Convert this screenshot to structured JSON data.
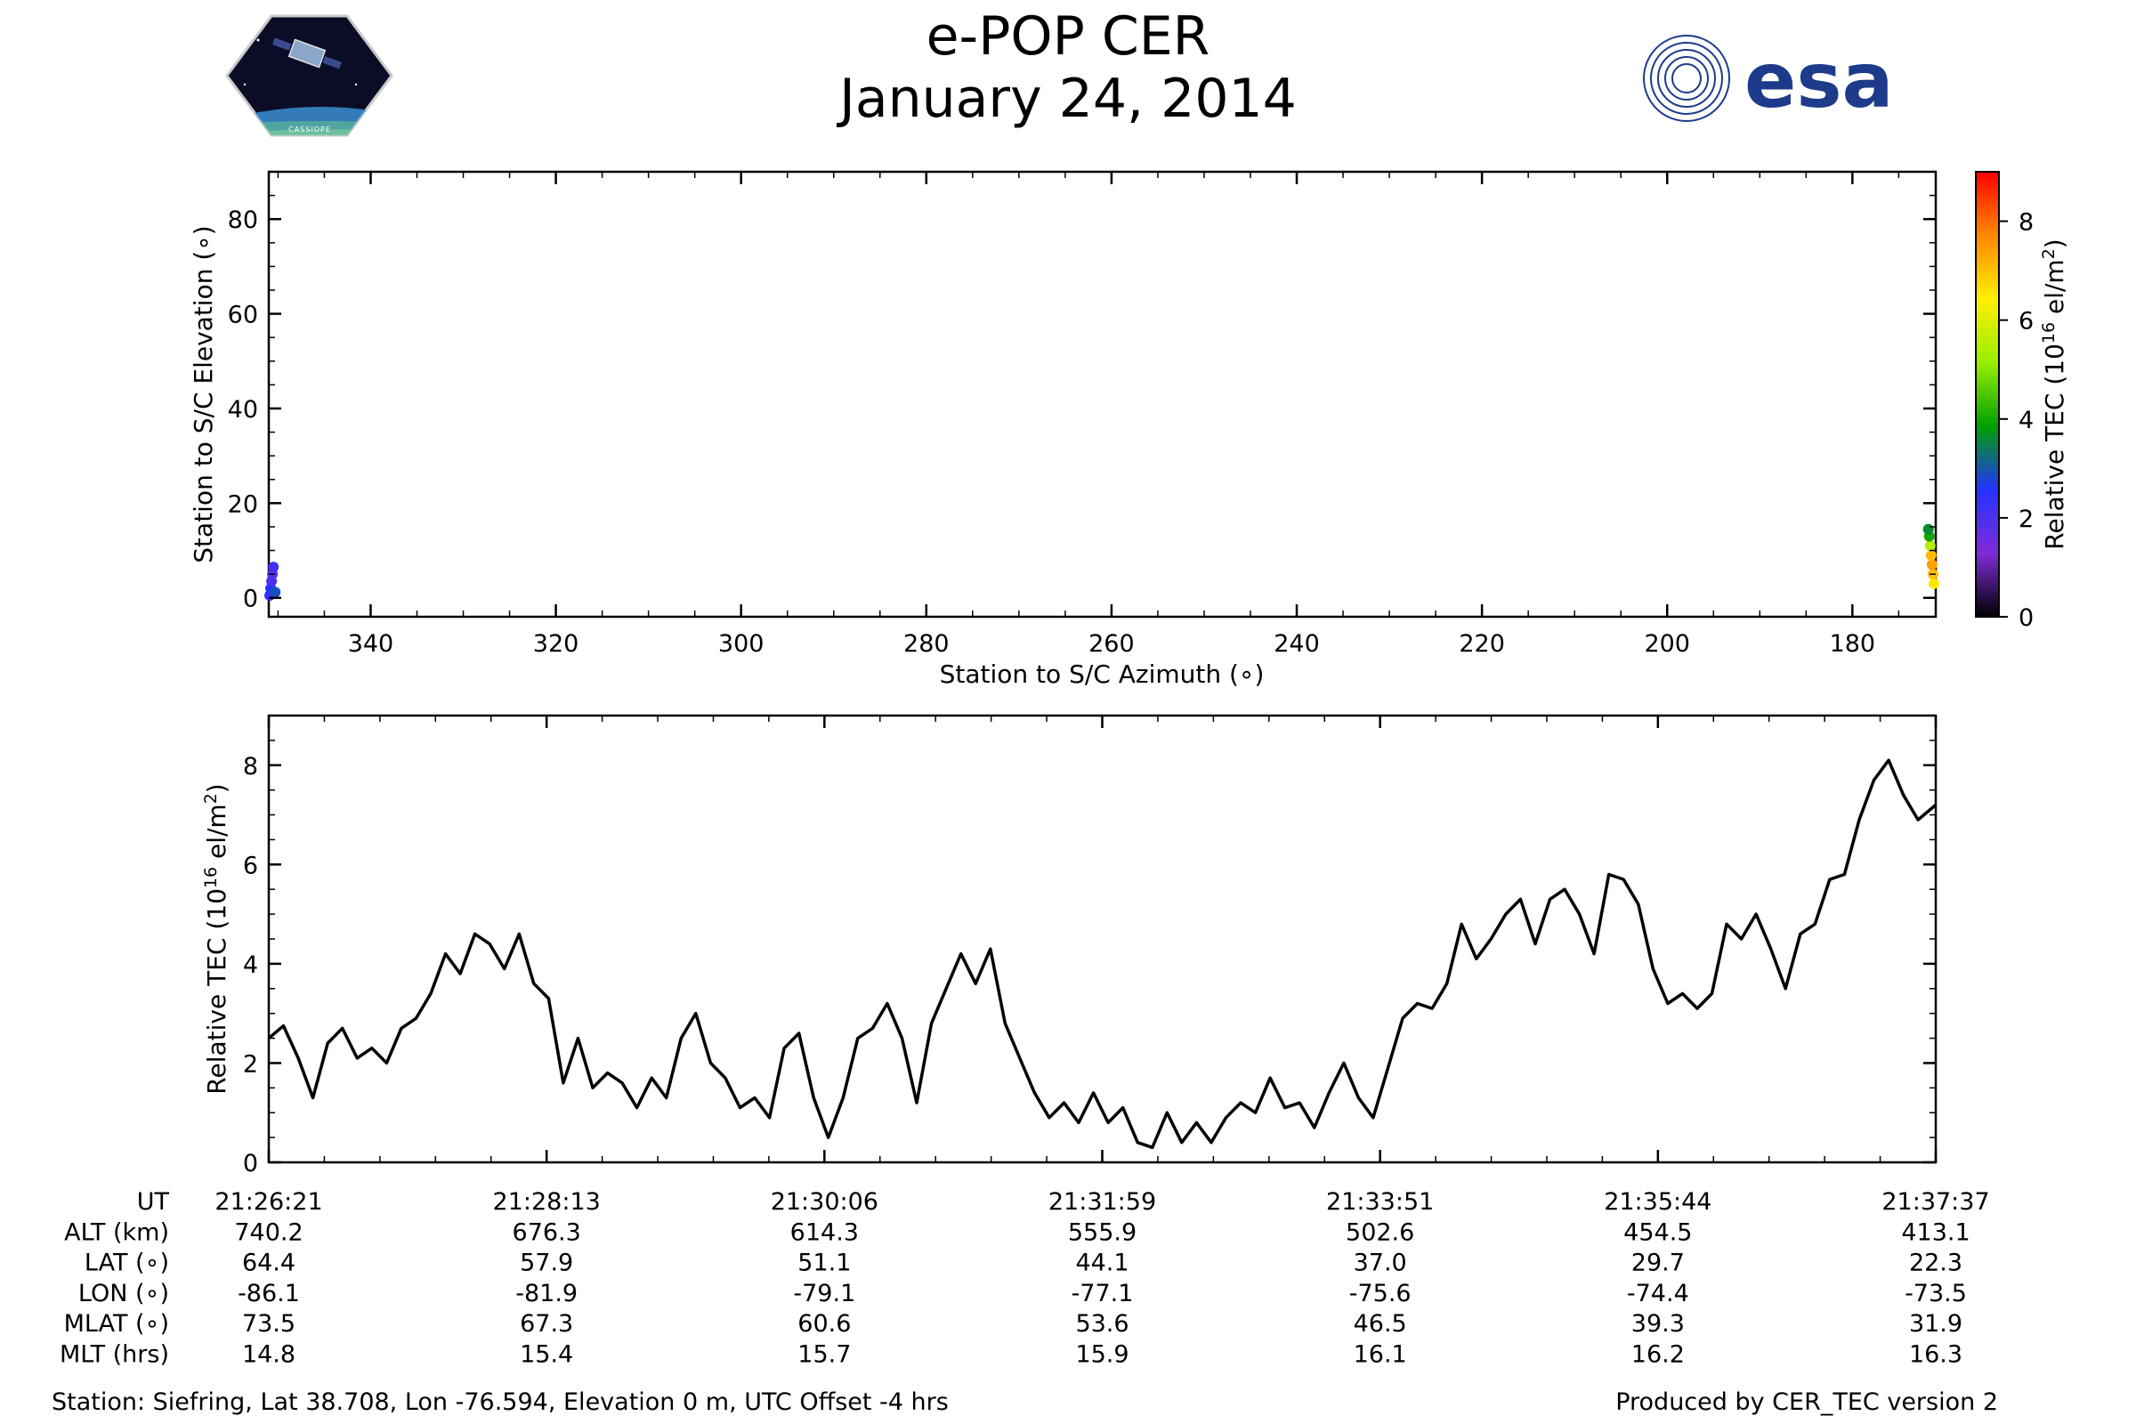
{
  "title": {
    "line1": "e-POP CER",
    "line2": "January 24, 2014"
  },
  "logos": {
    "left_mission_name": "CASSIOPE",
    "right_agency": "esa",
    "colors": {
      "esa_blue": "#1e3a8a",
      "cassiope_space": "#0b0d26",
      "cassiope_earth": "#3b8fd4"
    }
  },
  "chart_data": [
    {
      "type": "scatter",
      "title": "",
      "xlabel": "Station to S/C Azimuth (∘)",
      "ylabel": "Station to S/C Elevation (∘)",
      "xlim": [
        351,
        171
      ],
      "ylim": [
        -4,
        90
      ],
      "xticks": [
        340,
        320,
        300,
        280,
        260,
        240,
        220,
        200,
        180
      ],
      "yticks": [
        0,
        20,
        40,
        60,
        80
      ],
      "x_reversed": true,
      "grid": false,
      "series": [
        {
          "points": [
            {
              "x": 350.9,
              "y": 0.5,
              "tec": 2.3
            },
            {
              "x": 350.8,
              "y": 2.0,
              "tec": 2.6
            },
            {
              "x": 350.7,
              "y": 3.5,
              "tec": 2.0
            },
            {
              "x": 350.6,
              "y": 5.0,
              "tec": 1.8
            },
            {
              "x": 350.5,
              "y": 6.5,
              "tec": 2.1
            },
            {
              "x": 350.3,
              "y": 1.2,
              "tec": 2.9
            },
            {
              "x": 171.2,
              "y": 3.0,
              "tec": 6.5
            },
            {
              "x": 171.3,
              "y": 5.0,
              "tec": 7.0
            },
            {
              "x": 171.4,
              "y": 7.0,
              "tec": 7.4
            },
            {
              "x": 171.5,
              "y": 9.0,
              "tec": 7.1
            },
            {
              "x": 171.6,
              "y": 11.0,
              "tec": 5.5
            },
            {
              "x": 171.7,
              "y": 13.0,
              "tec": 4.0
            },
            {
              "x": 171.8,
              "y": 14.5,
              "tec": 3.6
            }
          ]
        }
      ],
      "colorbar": {
        "label": "Relative TEC (10",
        "label_sup": "16",
        "label_end": " el/m",
        "label_sup2": "2",
        "label_close": ")",
        "range": [
          0,
          9
        ],
        "ticks": [
          0,
          2,
          4,
          6,
          8
        ],
        "colormap": [
          "#000000",
          "#7f2bd9",
          "#2233ff",
          "#00a000",
          "#99ee00",
          "#ffee00",
          "#ff8800",
          "#ff0000"
        ]
      }
    },
    {
      "type": "line",
      "title": "",
      "xlabel": "",
      "ylabel": "Relative TEC (10",
      "ylabel_sup": "16",
      "ylabel_end": " el/m",
      "ylabel_sup2": "2",
      "ylabel_close": ")",
      "ylim": [
        0,
        9
      ],
      "yticks": [
        0,
        2,
        4,
        6,
        8
      ],
      "xlim_min": [
        0,
        679.2
      ],
      "grid": false,
      "series": [
        {
          "x": [
            0,
            6,
            12,
            18,
            24,
            30,
            36,
            42,
            48,
            54,
            60,
            66,
            72,
            78,
            84,
            90,
            96,
            102,
            108,
            114,
            120,
            126,
            132,
            138,
            144,
            150,
            156,
            162,
            168,
            174,
            180,
            186,
            192,
            198,
            204,
            210,
            216,
            222,
            228,
            234,
            240,
            246,
            252,
            258,
            264,
            270,
            276,
            282,
            288,
            294,
            300,
            306,
            312,
            318,
            324,
            330,
            336,
            342,
            348,
            354,
            360,
            366,
            372,
            378,
            384,
            390,
            396,
            402,
            408,
            414,
            420,
            426,
            432,
            438,
            444,
            450,
            456,
            462,
            468,
            474,
            480,
            486,
            492,
            498,
            504,
            510,
            516,
            522,
            528,
            534,
            540,
            546,
            552,
            558,
            564,
            570,
            576,
            582,
            588,
            594,
            600,
            606,
            612,
            618,
            624,
            630,
            636,
            642,
            648,
            654,
            660,
            666,
            672,
            679.2
          ],
          "values": [
            2.5,
            2.75,
            2.1,
            1.3,
            2.4,
            2.7,
            2.1,
            2.3,
            2.0,
            2.7,
            2.9,
            3.4,
            4.2,
            3.8,
            4.6,
            4.4,
            3.9,
            4.6,
            3.6,
            3.3,
            1.6,
            2.5,
            1.5,
            1.8,
            1.6,
            1.1,
            1.7,
            1.3,
            2.5,
            3.0,
            2.0,
            1.7,
            1.1,
            1.3,
            0.9,
            2.3,
            2.6,
            1.3,
            0.5,
            1.3,
            2.5,
            2.7,
            3.2,
            2.5,
            1.2,
            2.8,
            3.5,
            4.2,
            3.6,
            4.3,
            2.8,
            2.1,
            1.4,
            0.9,
            1.2,
            0.8,
            1.4,
            0.8,
            1.1,
            0.4,
            0.3,
            1.0,
            0.4,
            0.8,
            0.4,
            0.9,
            1.2,
            1.0,
            1.7,
            1.1,
            1.2,
            0.7,
            1.4,
            2.0,
            1.3,
            0.9,
            1.9,
            2.9,
            3.2,
            3.1,
            3.6,
            4.8,
            4.1,
            4.5,
            5.0,
            5.3,
            4.4,
            5.3,
            5.5,
            5.0,
            4.2,
            5.8,
            5.7,
            5.2,
            3.9,
            3.2,
            3.4,
            3.1,
            3.4,
            4.8,
            4.5,
            5.0,
            4.3,
            3.5,
            4.6,
            4.8,
            5.7,
            5.8,
            6.9,
            7.7,
            8.1,
            7.4,
            6.9,
            7.2
          ]
        }
      ],
      "table": {
        "row_labels": [
          "UT",
          "ALT (km)",
          "LAT (∘)",
          "LON (∘)",
          "MLAT (∘)",
          "MLT (hrs)"
        ],
        "columns": [
          [
            "21:26:21",
            "740.2",
            "64.4",
            "-86.1",
            "73.5",
            "14.8"
          ],
          [
            "21:28:13",
            "676.3",
            "57.9",
            "-81.9",
            "67.3",
            "15.4"
          ],
          [
            "21:30:06",
            "614.3",
            "51.1",
            "-79.1",
            "60.6",
            "15.7"
          ],
          [
            "21:31:59",
            "555.9",
            "44.1",
            "-77.1",
            "53.6",
            "15.9"
          ],
          [
            "21:33:51",
            "502.6",
            "37.0",
            "-75.6",
            "46.5",
            "16.1"
          ],
          [
            "21:35:44",
            "454.5",
            "29.7",
            "-74.4",
            "39.3",
            "16.2"
          ],
          [
            "21:37:37",
            "413.1",
            "22.3",
            "-73.5",
            "31.9",
            "16.3"
          ]
        ]
      }
    }
  ],
  "footer": {
    "station": "Station: Siefring, Lat 38.708, Lon -76.594, Elevation 0 m, UTC Offset -4 hrs",
    "produced": "Produced by CER_TEC version 2"
  }
}
